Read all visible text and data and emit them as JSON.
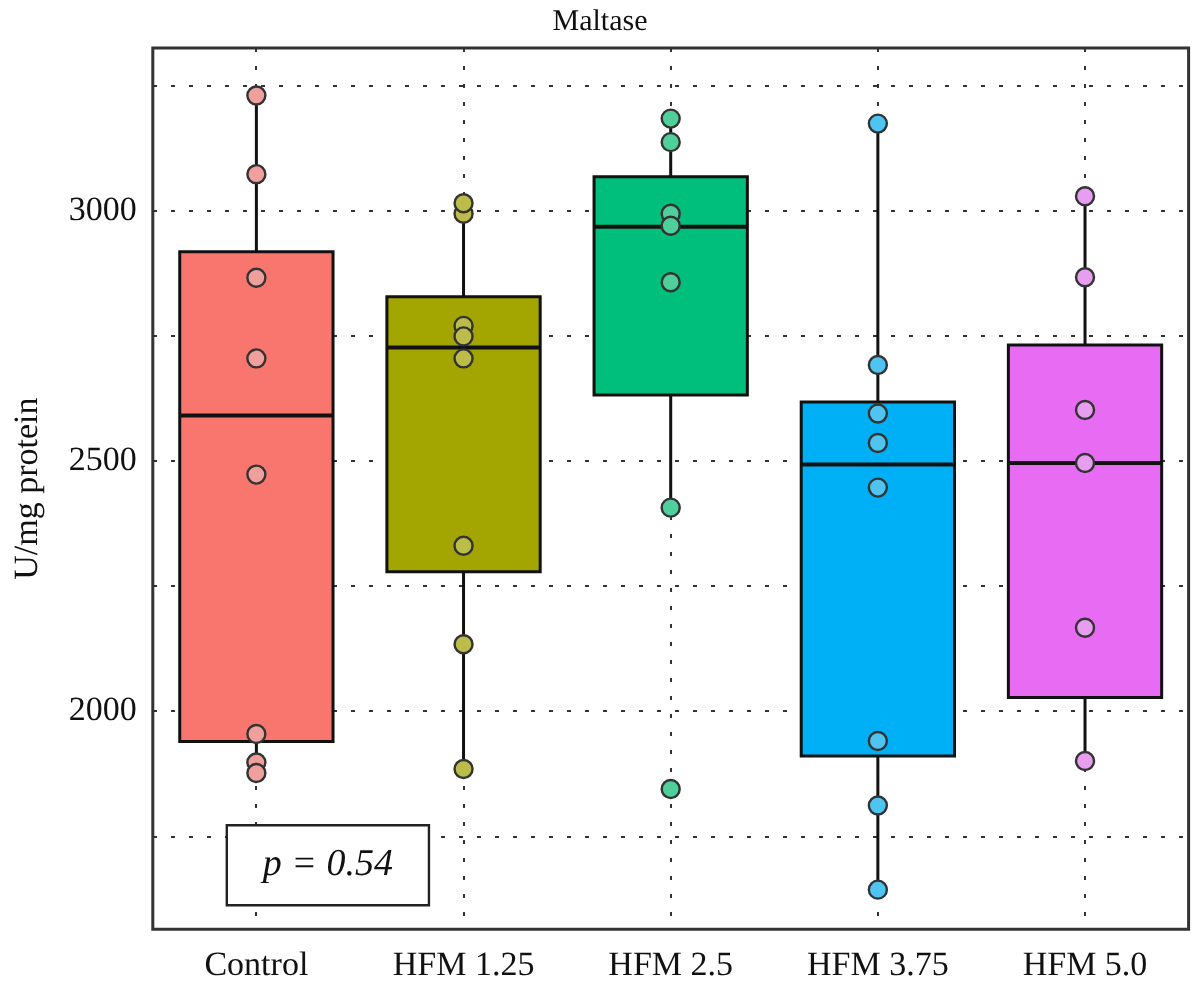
{
  "chart_data": {
    "type": "box",
    "title": "Maltase",
    "ylabel": "U/mg protein",
    "categories": [
      "Control",
      "HFM 1.25",
      "HFM 2.5",
      "HFM 3.75",
      "HFM 5.0"
    ],
    "colors": [
      "#f8766d",
      "#a3a500",
      "#00bf7d",
      "#00b0f6",
      "#e76bf3"
    ],
    "boxes": [
      {
        "low": 1877,
        "q1": 1940,
        "median": 2591,
        "q3": 2918,
        "high": 3223
      },
      {
        "low": 1885,
        "q1": 2279,
        "median": 2727,
        "q3": 2828,
        "high": 3015
      },
      {
        "low": 2407,
        "q1": 2632,
        "median": 2968,
        "q3": 3068,
        "high": 3184
      },
      {
        "low": 1644,
        "q1": 1911,
        "median": 2493,
        "q3": 2618,
        "high": 3174
      },
      {
        "low": 1907,
        "q1": 2028,
        "median": 2496,
        "q3": 2732,
        "high": 3034
      }
    ],
    "series": [
      {
        "type": "scatter",
        "x": [
          "Control",
          "Control",
          "Control",
          "Control",
          "Control",
          "Control",
          "Control",
          "Control",
          "HFM 1.25",
          "HFM 1.25",
          "HFM 1.25",
          "HFM 1.25",
          "HFM 1.25",
          "HFM 1.25",
          "HFM 1.25",
          "HFM 1.25",
          "HFM 2.5",
          "HFM 2.5",
          "HFM 2.5",
          "HFM 2.5",
          "HFM 2.5",
          "HFM 2.5",
          "HFM 2.5",
          "HFM 3.75",
          "HFM 3.75",
          "HFM 3.75",
          "HFM 3.75",
          "HFM 3.75",
          "HFM 3.75",
          "HFM 3.75",
          "HFM 3.75",
          "HFM 5.0",
          "HFM 5.0",
          "HFM 5.0",
          "HFM 5.0",
          "HFM 5.0",
          "HFM 5.0"
        ],
        "values": [
          3230,
          3073,
          2866,
          2705,
          2473,
          1955,
          1898,
          1877,
          2994,
          3015,
          2770,
          2749,
          2705,
          2331,
          2134,
          1885,
          3184,
          3137,
          2994,
          2970,
          2857,
          2407,
          1845,
          3174,
          2692,
          2595,
          2536,
          2447,
          1941,
          1812,
          1644,
          3029,
          2867,
          2602,
          2496,
          2167,
          1901
        ],
        "colors": [
          "#f0a09c",
          "#f0a09c",
          "#f0a09c",
          "#f0a09c",
          "#f0a09c",
          "#f0a09c",
          "#f0a09c",
          "#f0a09c",
          "#bcbc4a",
          "#bcbc4a",
          "#bcbc4a",
          "#bcbc4a",
          "#bcbc4a",
          "#bcbc4a",
          "#bcbc4a",
          "#bcbc4a",
          "#4fcf9c",
          "#4fcf9c",
          "#4fcf9c",
          "#4fcf9c",
          "#4fcf9c",
          "#4fcf9c",
          "#4fcf9c",
          "#4fc4f0",
          "#4fc4f0",
          "#4fc4f0",
          "#4fc4f0",
          "#4fc4f0",
          "#4fc4f0",
          "#4fc4f0",
          "#4fc4f0",
          "#e89ef0",
          "#e89ef0",
          "#e89ef0",
          "#e89ef0",
          "#e89ef0",
          "#e89ef0"
        ]
      }
    ],
    "ylim": [
      1565,
      3325
    ],
    "yticks": [
      {
        "value": 1750,
        "label": null
      },
      2000,
      {
        "value": 2250,
        "label": null
      },
      2500,
      {
        "value": 2750,
        "label": null
      },
      3000,
      {
        "value": 3250,
        "label": null
      }
    ],
    "grid": true,
    "legend": false,
    "marker": "circle",
    "annotations": [
      "p = 0.54"
    ]
  }
}
